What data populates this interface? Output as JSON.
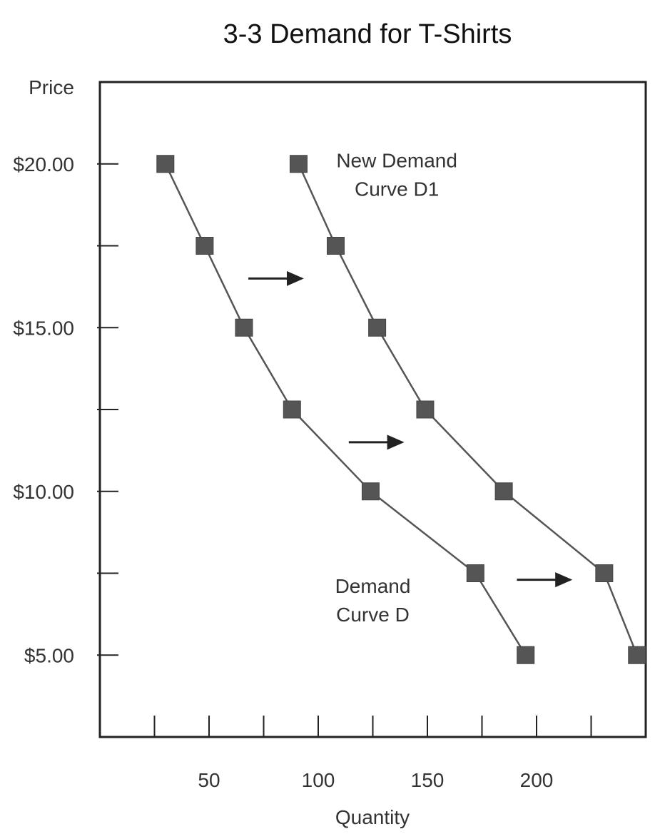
{
  "chart_data": {
    "type": "line",
    "title": "3-3 Demand for T-Shirts",
    "xlabel": "Quantity",
    "ylabel": "Price",
    "xlim": [
      0,
      250
    ],
    "ylim": [
      2.5,
      22.5
    ],
    "x_ticks": [
      0,
      25,
      50,
      75,
      100,
      125,
      150,
      175,
      200,
      225
    ],
    "x_tick_labels": [
      {
        "value": 50,
        "label": "50"
      },
      {
        "value": 100,
        "label": "100"
      },
      {
        "value": 150,
        "label": "150"
      },
      {
        "value": 200,
        "label": "200"
      }
    ],
    "y_ticks": [
      5,
      7.5,
      10,
      12.5,
      15,
      17.5,
      20
    ],
    "y_tick_labels": [
      {
        "value": 20,
        "label": "$20.00"
      },
      {
        "value": 15,
        "label": "$15.00"
      },
      {
        "value": 10,
        "label": "$10.00"
      },
      {
        "value": 5,
        "label": "$5.00"
      }
    ],
    "grid": false,
    "colors": {
      "marker": "#555555",
      "line": "#555555",
      "arrow": "#222222",
      "frame": "#222222"
    },
    "series": [
      {
        "name": "Demand Curve D",
        "points": [
          {
            "x": 30,
            "y": 20
          },
          {
            "x": 48,
            "y": 17.5
          },
          {
            "x": 66,
            "y": 15
          },
          {
            "x": 88,
            "y": 12.5
          },
          {
            "x": 124,
            "y": 10
          },
          {
            "x": 172,
            "y": 7.5
          },
          {
            "x": 195,
            "y": 5
          }
        ]
      },
      {
        "name": "New Demand Curve D1",
        "points": [
          {
            "x": 91,
            "y": 20
          },
          {
            "x": 108,
            "y": 17.5
          },
          {
            "x": 127,
            "y": 15
          },
          {
            "x": 149,
            "y": 12.5
          },
          {
            "x": 185,
            "y": 10
          },
          {
            "x": 231,
            "y": 7.5
          },
          {
            "x": 246,
            "y": 5
          }
        ]
      }
    ],
    "annotations": [
      {
        "lines": [
          "New Demand",
          "Curve D1"
        ],
        "x": 136,
        "y": 19.9
      },
      {
        "lines": [
          "Demand",
          "Curve D"
        ],
        "x": 125,
        "y": 6.9
      }
    ],
    "shift_arrows": [
      {
        "x_from": 68,
        "x_to": 97,
        "y": 16.5
      },
      {
        "x_from": 114,
        "x_to": 143,
        "y": 11.5
      },
      {
        "x_from": 191,
        "x_to": 220,
        "y": 7.3
      }
    ]
  }
}
